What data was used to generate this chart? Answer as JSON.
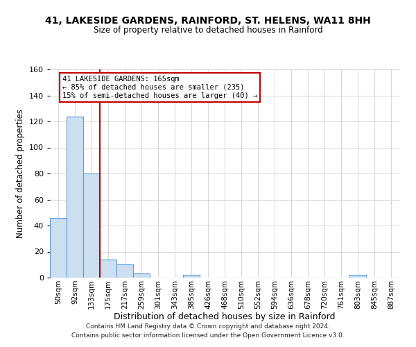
{
  "title": "41, LAKESIDE GARDENS, RAINFORD, ST. HELENS, WA11 8HH",
  "subtitle": "Size of property relative to detached houses in Rainford",
  "xlabel": "Distribution of detached houses by size in Rainford",
  "ylabel": "Number of detached properties",
  "bar_labels": [
    "50sqm",
    "92sqm",
    "133sqm",
    "175sqm",
    "217sqm",
    "259sqm",
    "301sqm",
    "343sqm",
    "385sqm",
    "426sqm",
    "468sqm",
    "510sqm",
    "552sqm",
    "594sqm",
    "636sqm",
    "678sqm",
    "720sqm",
    "761sqm",
    "803sqm",
    "845sqm",
    "887sqm"
  ],
  "bar_heights": [
    46,
    124,
    80,
    14,
    10,
    3,
    0,
    0,
    2,
    0,
    0,
    0,
    0,
    0,
    0,
    0,
    0,
    0,
    2,
    0,
    0
  ],
  "bar_color": "#ccdff0",
  "bar_edge_color": "#5b9bd5",
  "ylim": [
    0,
    160
  ],
  "yticks": [
    0,
    20,
    40,
    60,
    80,
    100,
    120,
    140,
    160
  ],
  "vline_x": 2.5,
  "vline_color": "#c00000",
  "annotation_title": "41 LAKESIDE GARDENS: 165sqm",
  "annotation_line1": "← 85% of detached houses are smaller (235)",
  "annotation_line2": "15% of semi-detached houses are larger (40) →",
  "annotation_box_color": "#ffffff",
  "annotation_box_edge": "#c00000",
  "footer_line1": "Contains HM Land Registry data © Crown copyright and database right 2024.",
  "footer_line2": "Contains public sector information licensed under the Open Government Licence v3.0.",
  "background_color": "#ffffff",
  "grid_color": "#d0d0d0"
}
